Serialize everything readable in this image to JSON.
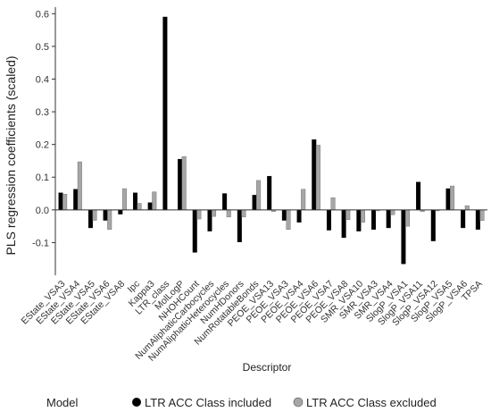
{
  "chart_data": {
    "type": "bar",
    "xlabel": "Descriptor",
    "ylabel": "PLS regression coefficients (scaled)",
    "ylim": [
      -0.2,
      0.62
    ],
    "yticks": [
      -0.1,
      0,
      0.1,
      0.2,
      0.3,
      0.4,
      0.5,
      0.6
    ],
    "grid": false,
    "legend": {
      "title": "Model",
      "placement": "bottom",
      "entries": [
        "LTR ACC Class included",
        "LTR ACC Class excluded"
      ]
    },
    "categories": [
      "EState_VSA3",
      "EState_VSA4",
      "EState_VSA5",
      "EState_VSA6",
      "EState_VSA8",
      "Ipc",
      "Kappa3",
      "LTR_class",
      "MolLogP",
      "NHOHCount",
      "NumAliphaticCarbocycles",
      "NumAliphaticHeterocycles",
      "NumHDonors",
      "NumRotatableBonds",
      "PEOE_VSA13",
      "PEOE_VSA3",
      "PEOE_VSA4",
      "PEOE_VSA6",
      "PEOE_VSA7",
      "PEOE_VSA8",
      "SMR_VSA10",
      "SMR_VSA3",
      "SMR_VSA4",
      "SlogP_VSA1",
      "SlogP_VSA11",
      "SlogP_VSA12",
      "SlogP_VSA5",
      "SlogP_VSA6",
      "TPSA"
    ],
    "series": [
      {
        "name": "LTR ACC Class included",
        "color": "#000000",
        "values": [
          0.052,
          0.063,
          -0.055,
          -0.032,
          -0.013,
          0.052,
          0.022,
          0.59,
          0.155,
          -0.13,
          -0.065,
          0.05,
          -0.098,
          0.045,
          0.103,
          -0.032,
          -0.038,
          0.215,
          -0.062,
          -0.085,
          -0.065,
          -0.06,
          -0.055,
          -0.165,
          0.085,
          -0.095,
          0.065,
          -0.055,
          -0.06
        ]
      },
      {
        "name": "LTR ACC Class excluded",
        "color": "#a6a6a6",
        "values": [
          0.048,
          0.147,
          -0.032,
          -0.06,
          0.065,
          0.02,
          0.055,
          null,
          0.163,
          -0.028,
          -0.02,
          -0.022,
          -0.022,
          0.09,
          -0.005,
          -0.06,
          0.063,
          0.198,
          0.037,
          -0.03,
          -0.038,
          -0.003,
          -0.015,
          -0.05,
          -0.005,
          -0.003,
          0.073,
          0.013,
          -0.033
        ]
      }
    ]
  }
}
